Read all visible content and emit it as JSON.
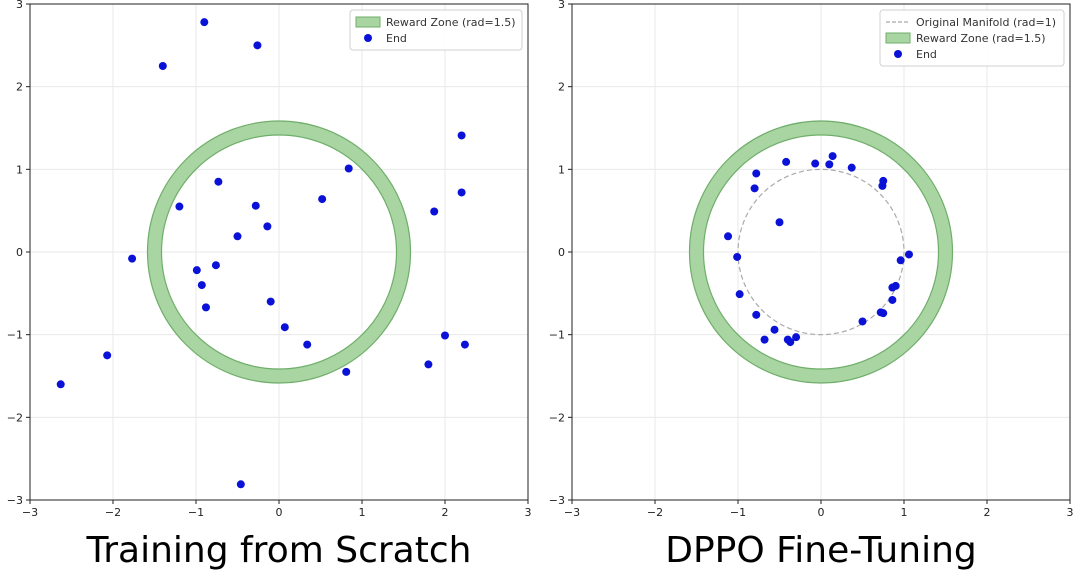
{
  "figure": {
    "captions": [
      "Training from Scratch",
      "DPPO Fine-Tuning"
    ]
  },
  "colors": {
    "points": "#0a12d8",
    "reward_fill": "#a8d5a2",
    "reward_edge": "#6fae6a",
    "manifold": "#aaaaaa",
    "grid": "#e8e8e8"
  },
  "chart_data": [
    {
      "type": "scatter",
      "title": "Training from Scratch",
      "xlabel": "",
      "ylabel": "",
      "xlim": [
        -3,
        3
      ],
      "ylim": [
        -3,
        3
      ],
      "xticks": [
        -3,
        -2,
        -1,
        0,
        1,
        2,
        3
      ],
      "yticks": [
        -3,
        -2,
        -1,
        0,
        1,
        2,
        3
      ],
      "grid": true,
      "legend_position": "top-right",
      "reward_zone": {
        "center": [
          0,
          0
        ],
        "radius": 1.5,
        "label": "Reward Zone (rad=1.5)"
      },
      "manifold": null,
      "series": [
        {
          "name": "End",
          "points": [
            [
              -0.9,
              2.78
            ],
            [
              -0.26,
              2.5
            ],
            [
              -1.4,
              2.25
            ],
            [
              2.2,
              1.41
            ],
            [
              0.84,
              1.01
            ],
            [
              -0.73,
              0.85
            ],
            [
              2.2,
              0.72
            ],
            [
              0.52,
              0.64
            ],
            [
              -1.2,
              0.55
            ],
            [
              -0.28,
              0.56
            ],
            [
              1.87,
              0.49
            ],
            [
              -0.14,
              0.31
            ],
            [
              -0.5,
              0.19
            ],
            [
              -1.77,
              -0.08
            ],
            [
              -0.76,
              -0.16
            ],
            [
              -0.99,
              -0.22
            ],
            [
              -0.93,
              -0.4
            ],
            [
              -0.1,
              -0.6
            ],
            [
              -0.88,
              -0.67
            ],
            [
              0.07,
              -0.91
            ],
            [
              2.0,
              -1.01
            ],
            [
              0.34,
              -1.12
            ],
            [
              2.24,
              -1.12
            ],
            [
              -2.07,
              -1.25
            ],
            [
              1.8,
              -1.36
            ],
            [
              0.81,
              -1.45
            ],
            [
              -2.63,
              -1.6
            ],
            [
              -0.46,
              -2.81
            ]
          ]
        }
      ]
    },
    {
      "type": "scatter",
      "title": "DPPO Fine-Tuning",
      "xlabel": "",
      "ylabel": "",
      "xlim": [
        -3,
        3
      ],
      "ylim": [
        -3,
        3
      ],
      "xticks": [
        -3,
        -2,
        -1,
        0,
        1,
        2,
        3
      ],
      "yticks": [
        -3,
        -2,
        -1,
        0,
        1,
        2,
        3
      ],
      "grid": true,
      "legend_position": "top-right",
      "reward_zone": {
        "center": [
          0,
          0
        ],
        "radius": 1.5,
        "label": "Reward Zone (rad=1.5)"
      },
      "manifold": {
        "center": [
          0,
          0
        ],
        "radius": 1,
        "label": "Original Manifold (rad=1)"
      },
      "series": [
        {
          "name": "End",
          "points": [
            [
              0.14,
              1.16
            ],
            [
              -0.42,
              1.09
            ],
            [
              -0.07,
              1.07
            ],
            [
              0.1,
              1.06
            ],
            [
              0.37,
              1.02
            ],
            [
              -0.78,
              0.95
            ],
            [
              0.75,
              0.86
            ],
            [
              0.74,
              0.8
            ],
            [
              -0.8,
              0.77
            ],
            [
              -0.5,
              0.36
            ],
            [
              -1.12,
              0.19
            ],
            [
              1.06,
              -0.03
            ],
            [
              -1.01,
              -0.06
            ],
            [
              0.96,
              -0.1
            ],
            [
              0.9,
              -0.41
            ],
            [
              0.86,
              -0.43
            ],
            [
              -0.98,
              -0.51
            ],
            [
              0.86,
              -0.58
            ],
            [
              0.72,
              -0.73
            ],
            [
              0.75,
              -0.74
            ],
            [
              -0.78,
              -0.76
            ],
            [
              0.5,
              -0.84
            ],
            [
              -0.56,
              -0.94
            ],
            [
              -0.3,
              -1.03
            ],
            [
              -0.68,
              -1.06
            ],
            [
              -0.4,
              -1.06
            ],
            [
              -0.37,
              -1.09
            ]
          ]
        }
      ]
    }
  ]
}
